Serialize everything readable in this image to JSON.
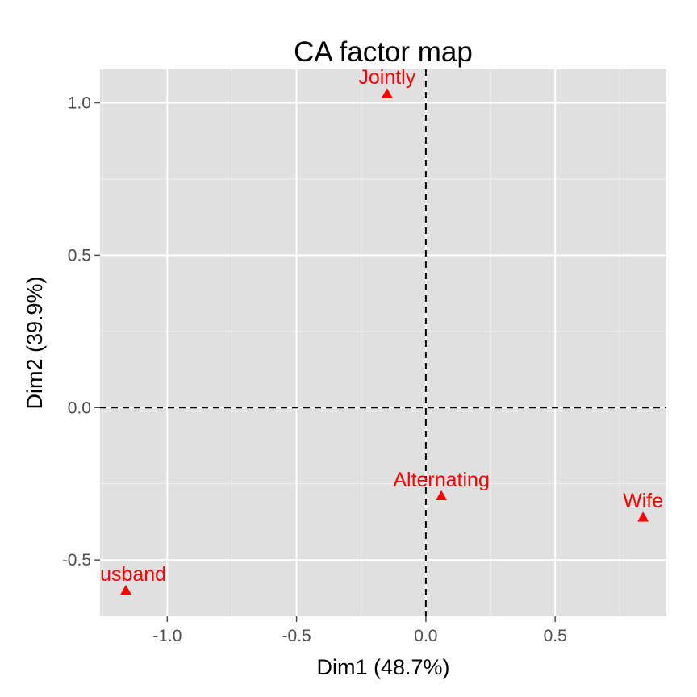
{
  "chart_data": {
    "type": "scatter",
    "title": "CA factor map",
    "xlabel": "Dim1 (48.7%)",
    "ylabel": "Dim2 (39.9%)",
    "xlim": [
      -1.26,
      0.93
    ],
    "ylim": [
      -0.685,
      1.11
    ],
    "x_ticks": [
      -1.0,
      -0.5,
      0.0,
      0.5
    ],
    "x_tick_labels": [
      "-1.0",
      "-0.5",
      "0.0",
      "0.5"
    ],
    "y_ticks": [
      -0.5,
      0.0,
      0.5,
      1.0
    ],
    "y_tick_labels": [
      "-0.5",
      "0.0",
      "0.5",
      "1.0"
    ],
    "grid": true,
    "reference_lines": {
      "x": 0,
      "y": 0,
      "style": "dashed"
    },
    "marker": "triangle",
    "color": "#ff0000",
    "points": [
      {
        "label": "Jointly",
        "x": -0.15,
        "y": 1.03
      },
      {
        "label": "Alternating",
        "x": 0.06,
        "y": -0.29
      },
      {
        "label": "Wife",
        "x": 0.84,
        "y": -0.36
      },
      {
        "label": "Husband",
        "x": -1.16,
        "y": -0.6
      }
    ]
  }
}
